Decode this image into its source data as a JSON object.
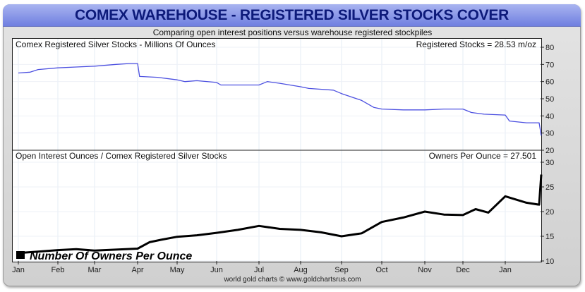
{
  "header": {
    "title": "COMEX WAREHOUSE - REGISTERED SILVER STOCKS COVER",
    "subtitle": "Comparing open interest positions versus warehouse registered stockpiles"
  },
  "footer": {
    "credit": "world gold charts © www.goldchartsrus.com"
  },
  "chart_data": [
    {
      "type": "line",
      "title": "Comex Registered Silver Stocks - Millions Of Ounces",
      "annotation": "Registered Stocks = 28.53 m/oz",
      "ylim": [
        20,
        80
      ],
      "yticks": [
        80,
        70,
        60,
        50,
        40,
        30,
        20
      ],
      "color": "#4b4fe0",
      "x_unit": "months since Jan",
      "categories": [
        "Jan",
        "Feb",
        "Mar",
        "Apr",
        "May",
        "Jun",
        "Jul",
        "Aug",
        "Sep",
        "Oct",
        "Nov",
        "Dec",
        "Jan"
      ],
      "x": [
        0,
        0.3,
        0.5,
        1,
        1.5,
        2,
        2.5,
        2.8,
        3.0,
        3.05,
        3.5,
        4,
        4.2,
        4.5,
        5,
        5.1,
        6,
        6.2,
        6.5,
        7,
        7.2,
        7.8,
        8,
        8.5,
        8.8,
        9,
        9.5,
        10,
        10.5,
        11,
        11.2,
        11.5,
        12,
        12.1,
        12.5,
        12.8,
        12.85
      ],
      "values": [
        65,
        65.5,
        67,
        68,
        68.5,
        69,
        70,
        70.5,
        70.5,
        63,
        62.5,
        61,
        60,
        60.5,
        59.5,
        58,
        58,
        60,
        59,
        57,
        56,
        55,
        53,
        49,
        45,
        44,
        43.5,
        43.5,
        44,
        44,
        42,
        41,
        40.5,
        37,
        36,
        36,
        28.53
      ]
    },
    {
      "type": "line",
      "title": "Open Interest Ounces / Comex Registered Silver Stocks",
      "annotation": "Owners Per Ounce = 27.501",
      "legend": "Number Of Owners Per Ounce",
      "ylim": [
        10,
        30
      ],
      "yticks": [
        30,
        25,
        20,
        15,
        10
      ],
      "color": "#000000",
      "x": [
        0,
        0.5,
        1,
        1.5,
        2,
        2.5,
        3,
        3.3,
        3.6,
        4,
        4.5,
        5,
        5.5,
        6,
        6.5,
        7,
        7.5,
        8,
        8.5,
        9,
        9.5,
        10,
        10.5,
        11,
        11.3,
        11.6,
        12,
        12.5,
        12.8,
        12.85
      ],
      "values": [
        11.6,
        11.9,
        12.2,
        12.4,
        12.1,
        12.3,
        12.5,
        13.8,
        14.3,
        14.9,
        15.2,
        15.7,
        16.3,
        17.1,
        16.5,
        16.3,
        15.8,
        15,
        15.6,
        17.9,
        18.8,
        20,
        19.4,
        19.3,
        20.5,
        19.8,
        23.1,
        21.8,
        21.4,
        27.5
      ]
    }
  ]
}
